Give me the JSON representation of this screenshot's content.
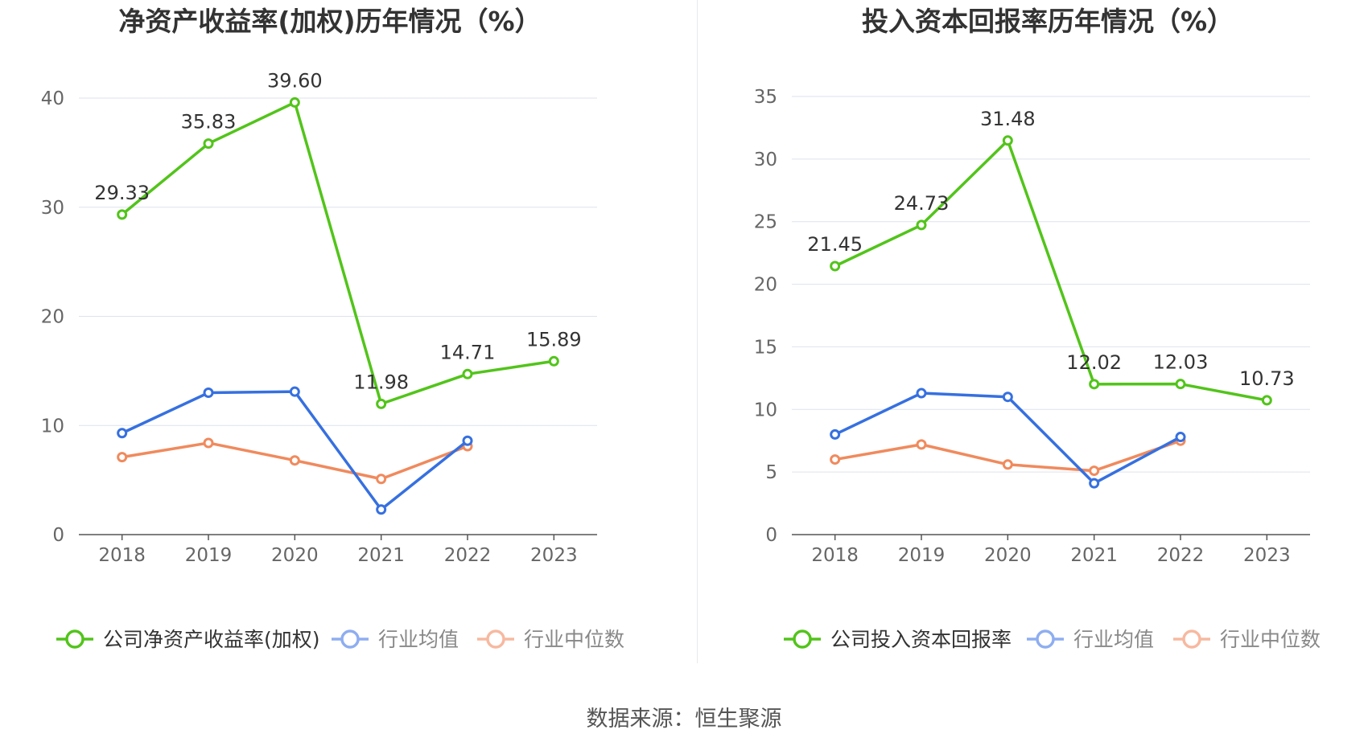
{
  "source_text": "数据来源：恒生聚源",
  "colors": {
    "company": "#52c41a",
    "industry_avg": "#3670e0",
    "industry_median": "#f08a5d",
    "grid": "#dde2ec",
    "axis": "#555555",
    "tick_text": "#666666",
    "title": "#333333",
    "legend_avg_icon": "#8eaef0",
    "legend_median_icon": "#f7b9a0",
    "legend_text_muted": "#888888",
    "legend_text": "#333333"
  },
  "chart_data": [
    {
      "type": "line",
      "title": "净资产收益率(加权)历年情况（%）",
      "categories": [
        "2018",
        "2019",
        "2020",
        "2021",
        "2022",
        "2023"
      ],
      "ylim": [
        0,
        40
      ],
      "yticks": [
        0,
        10,
        20,
        30,
        40
      ],
      "grid": true,
      "legend_position": "bottom",
      "series": [
        {
          "name": "公司净资产收益率(加权)",
          "color_key": "company",
          "values": [
            29.33,
            35.83,
            39.6,
            11.98,
            14.71,
            15.89
          ],
          "labels": [
            "29.33",
            "35.83",
            "39.60",
            "11.98",
            "14.71",
            "15.89"
          ]
        },
        {
          "name": "行业均值",
          "color_key": "industry_avg",
          "values": [
            9.3,
            13.0,
            13.1,
            2.3,
            8.6,
            null
          ]
        },
        {
          "name": "行业中位数",
          "color_key": "industry_median",
          "values": [
            7.1,
            8.4,
            6.8,
            5.1,
            8.1,
            null
          ]
        }
      ]
    },
    {
      "type": "line",
      "title": "投入资本回报率历年情况（%）",
      "categories": [
        "2018",
        "2019",
        "2020",
        "2021",
        "2022",
        "2023"
      ],
      "ylim": [
        0,
        35
      ],
      "yticks": [
        0,
        5,
        10,
        15,
        20,
        25,
        30,
        35
      ],
      "grid": true,
      "legend_position": "bottom",
      "series": [
        {
          "name": "公司投入资本回报率",
          "color_key": "company",
          "values": [
            21.45,
            24.73,
            31.48,
            12.02,
            12.03,
            10.73
          ],
          "labels": [
            "21.45",
            "24.73",
            "31.48",
            "12.02",
            "12.03",
            "10.73"
          ]
        },
        {
          "name": "行业均值",
          "color_key": "industry_avg",
          "values": [
            8.0,
            11.3,
            11.0,
            4.1,
            7.8,
            null
          ]
        },
        {
          "name": "行业中位数",
          "color_key": "industry_median",
          "values": [
            6.0,
            7.2,
            5.6,
            5.1,
            7.5,
            null
          ]
        }
      ]
    }
  ]
}
